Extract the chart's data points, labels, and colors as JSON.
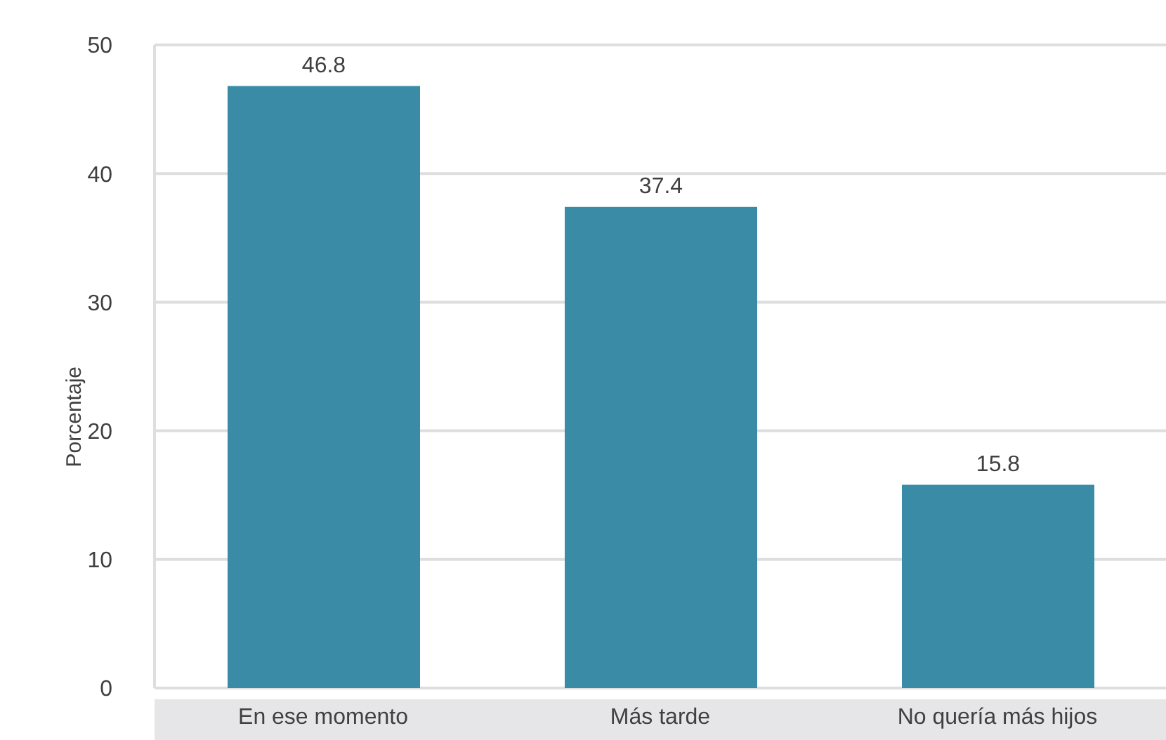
{
  "chart_data": {
    "type": "bar",
    "ylabel": "Porcentaje",
    "categories": [
      "En ese momento",
      "Más tarde",
      "No quería más hijos"
    ],
    "values": [
      46.8,
      37.4,
      15.8
    ],
    "color": "#3a8ca6",
    "ylim": [
      0,
      50
    ],
    "yticks": [
      0,
      10,
      20,
      30,
      40,
      50
    ],
    "grid": "y",
    "data_labels": true
  }
}
